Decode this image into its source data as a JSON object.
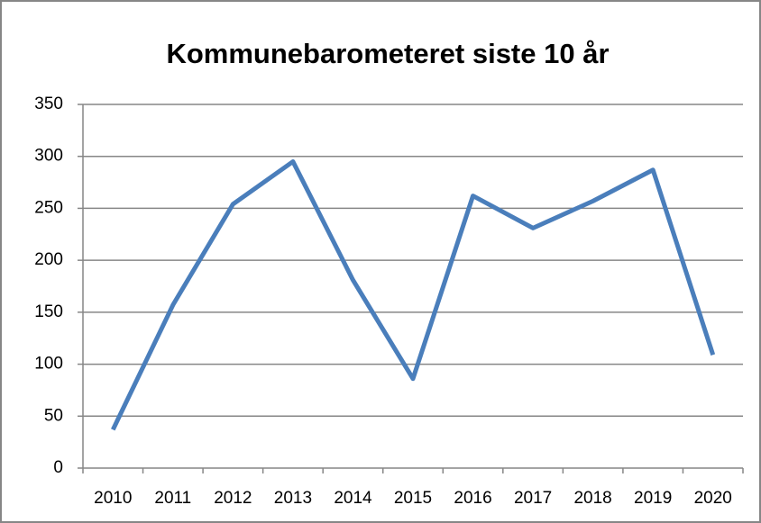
{
  "chart_data": {
    "type": "line",
    "title": "Kommunebarometeret siste 10 år",
    "categories": [
      "2010",
      "2011",
      "2012",
      "2013",
      "2014",
      "2015",
      "2016",
      "2017",
      "2018",
      "2019",
      "2020"
    ],
    "values": [
      37,
      157,
      254,
      295,
      181,
      86,
      262,
      231,
      257,
      287,
      109
    ],
    "color": "#4a7ebb",
    "ylim": [
      0,
      350
    ],
    "yticks": [
      0,
      50,
      100,
      150,
      200,
      250,
      300,
      350
    ],
    "grid": true
  }
}
